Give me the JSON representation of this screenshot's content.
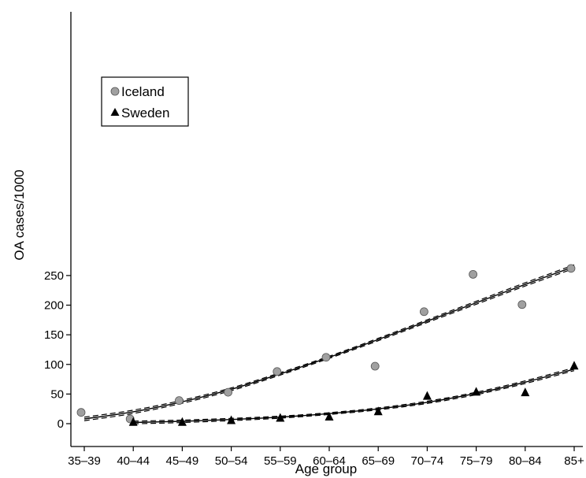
{
  "chart_data": {
    "type": "scatter",
    "xlabel": "Age group",
    "ylabel": "OA cases/1000",
    "categories": [
      "35–39",
      "40–44",
      "45–49",
      "50–54",
      "55–59",
      "60–64",
      "65–69",
      "70–74",
      "75–79",
      "80–84",
      "85+"
    ],
    "ylim": [
      0,
      270
    ],
    "yticks": [
      0,
      50,
      100,
      150,
      200,
      250
    ],
    "grid": false,
    "legend": "top-left",
    "series": [
      {
        "name": "Iceland",
        "marker": "circle",
        "color": "#a0a0a0",
        "points": [
          {
            "x": 0,
            "y": 19
          },
          {
            "x": 1,
            "y": 8
          },
          {
            "x": 2,
            "y": 39
          },
          {
            "x": 3,
            "y": 53
          },
          {
            "x": 4,
            "y": 88
          },
          {
            "x": 5,
            "y": 112
          },
          {
            "x": 6,
            "y": 97
          },
          {
            "x": 7,
            "y": 189
          },
          {
            "x": 8,
            "y": 252
          },
          {
            "x": 9,
            "y": 201
          },
          {
            "x": 10,
            "y": 262
          }
        ],
        "fit": [
          8,
          20,
          37,
          58,
          84,
          112,
          142,
          173,
          204,
          235,
          265
        ],
        "fit_band": 3
      },
      {
        "name": "Sweden",
        "marker": "triangle",
        "color": "#000000",
        "points": [
          {
            "x": 1,
            "y": 3
          },
          {
            "x": 2,
            "y": 3
          },
          {
            "x": 3,
            "y": 6
          },
          {
            "x": 4,
            "y": 10
          },
          {
            "x": 5,
            "y": 12
          },
          {
            "x": 6,
            "y": 21
          },
          {
            "x": 7,
            "y": 47
          },
          {
            "x": 8,
            "y": 54
          },
          {
            "x": 9,
            "y": 53
          },
          {
            "x": 10,
            "y": 98
          }
        ],
        "fit": [
          null,
          2,
          4,
          7,
          11,
          17,
          25,
          36,
          51,
          70,
          92
        ],
        "fit_band": 2.5
      }
    ]
  }
}
